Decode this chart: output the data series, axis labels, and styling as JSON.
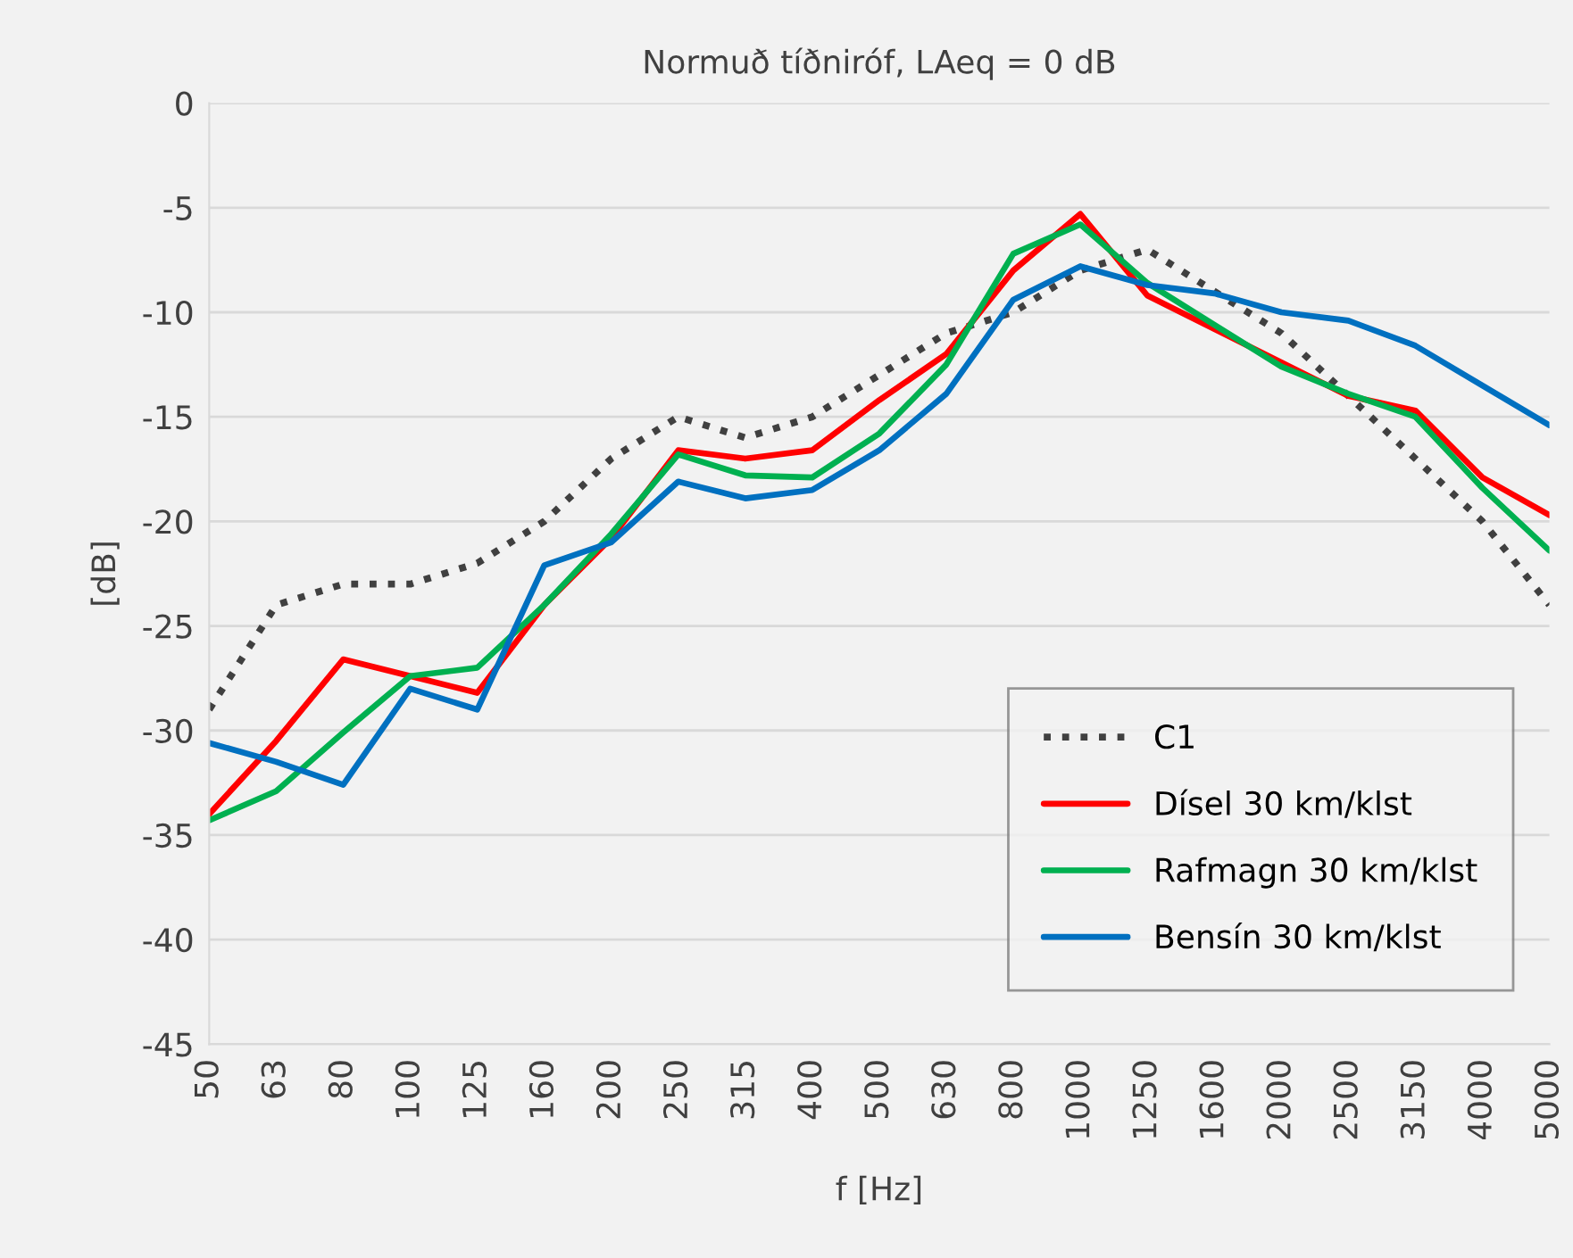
{
  "chart_data": {
    "type": "line",
    "title": "Normuð tíðniróf, LAeq = 0 dB",
    "xlabel": "f [Hz]",
    "ylabel": "[dB]",
    "categories": [
      "50",
      "63",
      "80",
      "100",
      "125",
      "160",
      "200",
      "250",
      "315",
      "400",
      "500",
      "630",
      "800",
      "1000",
      "1250",
      "1600",
      "2000",
      "2500",
      "3150",
      "4000",
      "5000"
    ],
    "series": [
      {
        "name": "C1",
        "color": "#404040",
        "line_style": "dotted",
        "values": [
          -29,
          -24,
          -23,
          -23,
          -22,
          -20,
          -17,
          -15,
          -16,
          -15,
          -13,
          -11,
          -10,
          -8,
          -7,
          -9,
          -11,
          -14,
          -17,
          -20,
          -24
        ]
      },
      {
        "name": "Dísel 30 km/klst",
        "color": "#ff0000",
        "line_style": "solid",
        "values": [
          -34,
          -30.5,
          -26.6,
          -27.4,
          -28.2,
          -24,
          -20.8,
          -16.6,
          -17,
          -16.6,
          -14.2,
          -12,
          -8,
          -5.3,
          -9.2,
          -10.8,
          -12.4,
          -14,
          -14.7,
          -17.9,
          -19.7
        ]
      },
      {
        "name": "Rafmagn 30 km/klst",
        "color": "#00b050",
        "line_style": "solid",
        "values": [
          -34.3,
          -32.9,
          -30.1,
          -27.4,
          -27,
          -24,
          -20.6,
          -16.8,
          -17.8,
          -17.9,
          -15.8,
          -12.5,
          -7.2,
          -5.8,
          -8.6,
          -10.6,
          -12.6,
          -13.9,
          -15,
          -18.4,
          -21.4
        ]
      },
      {
        "name": "Bensín 30 km/klst",
        "color": "#0070c0",
        "line_style": "solid",
        "values": [
          -30.6,
          -31.5,
          -32.6,
          -28,
          -29,
          -22.1,
          -21,
          -18.1,
          -18.9,
          -18.5,
          -16.6,
          -13.9,
          -9.4,
          -7.8,
          -8.7,
          -9.1,
          -10,
          -10.4,
          -11.6,
          -13.5,
          -15.4
        ]
      }
    ],
    "ylim": [
      -45,
      0
    ],
    "yticks": [
      -45,
      -40,
      -35,
      -30,
      -25,
      -20,
      -15,
      -10,
      -5,
      0
    ],
    "grid": "y",
    "legend": "bottom right",
    "marker": "none"
  }
}
